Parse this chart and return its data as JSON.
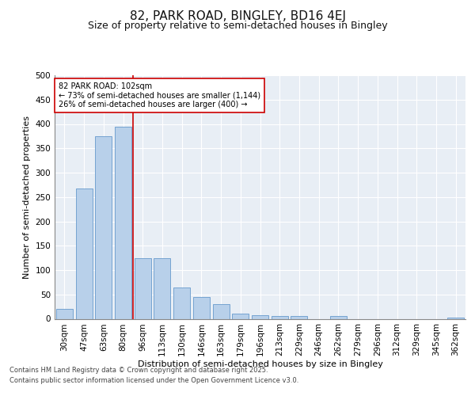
{
  "title": "82, PARK ROAD, BINGLEY, BD16 4EJ",
  "subtitle": "Size of property relative to semi-detached houses in Bingley",
  "xlabel": "Distribution of semi-detached houses by size in Bingley",
  "ylabel": "Number of semi-detached properties",
  "bar_categories": [
    "30sqm",
    "47sqm",
    "63sqm",
    "80sqm",
    "96sqm",
    "113sqm",
    "130sqm",
    "146sqm",
    "163sqm",
    "179sqm",
    "196sqm",
    "213sqm",
    "229sqm",
    "246sqm",
    "262sqm",
    "279sqm",
    "296sqm",
    "312sqm",
    "329sqm",
    "345sqm",
    "362sqm"
  ],
  "bar_values": [
    20,
    268,
    375,
    395,
    125,
    125,
    65,
    45,
    30,
    10,
    8,
    6,
    5,
    0,
    5,
    0,
    0,
    0,
    0,
    0,
    3
  ],
  "bar_color": "#b8d0ea",
  "bar_edge_color": "#6699cc",
  "reference_line_x": 3.5,
  "reference_line_label": "82 PARK ROAD: 102sqm",
  "annotation_smaller": "← 73% of semi-detached houses are smaller (1,144)",
  "annotation_larger": "26% of semi-detached houses are larger (400) →",
  "annotation_box_color": "#ffffff",
  "annotation_box_edge_color": "#cc0000",
  "reference_line_color": "#cc0000",
  "ylim": [
    0,
    500
  ],
  "yticks": [
    0,
    50,
    100,
    150,
    200,
    250,
    300,
    350,
    400,
    450,
    500
  ],
  "background_color": "#e8eef5",
  "grid_color": "#ffffff",
  "footer_line1": "Contains HM Land Registry data © Crown copyright and database right 2025.",
  "footer_line2": "Contains public sector information licensed under the Open Government Licence v3.0.",
  "title_fontsize": 11,
  "subtitle_fontsize": 9,
  "axis_label_fontsize": 8,
  "tick_fontsize": 7.5,
  "annotation_fontsize": 7
}
